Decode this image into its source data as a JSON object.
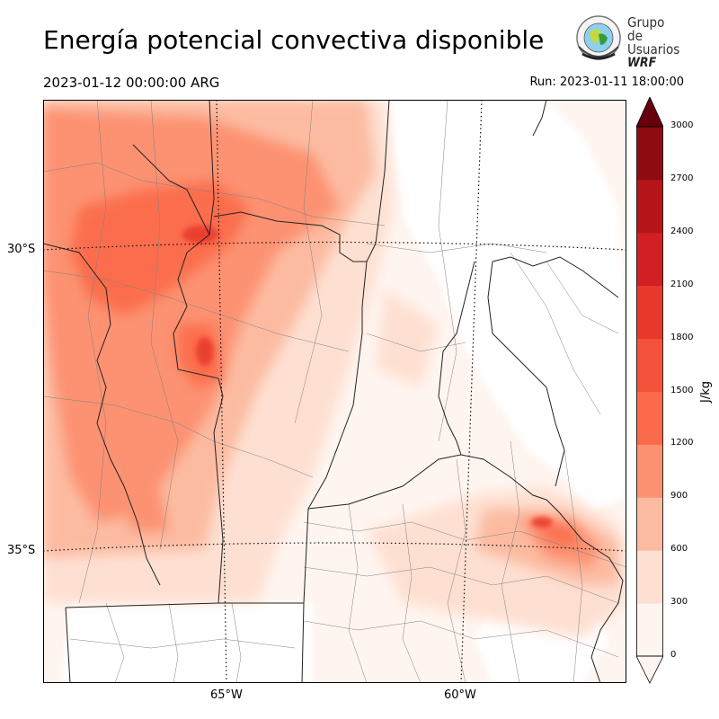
{
  "header": {
    "title": "Energía potencial convectiva disponible",
    "valid_time": "2023-01-12 00:00:00 ARG",
    "run_time": "Run: 2023-01-11 18:00:00"
  },
  "logo": {
    "line1": "Grupo de",
    "line2": "Usuarios",
    "line3": "WRF"
  },
  "map": {
    "lat_labels": [
      "30°S",
      "35°S"
    ],
    "lon_labels": [
      "65°W",
      "60°W"
    ],
    "gridline_style": "dotted",
    "colormap": "Reds"
  },
  "colorbar": {
    "unit": "J/kg",
    "ticks": [
      "0",
      "300",
      "600",
      "900",
      "1200",
      "1500",
      "1800",
      "2100",
      "2400",
      "2700",
      "3000"
    ],
    "colors": [
      "#fff5f0",
      "#fee0d2",
      "#fcbba1",
      "#fc9272",
      "#fb6a4a",
      "#f4523a",
      "#e8392c",
      "#d11f24",
      "#b51519",
      "#8f0b12",
      "#67000d"
    ],
    "extend": "both"
  }
}
